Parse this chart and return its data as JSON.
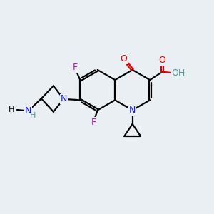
{
  "background_color": "#eaeff3",
  "atom_colors": {
    "C": "#000000",
    "N": "#1a1aff",
    "O": "#dd0000",
    "F": "#cc00cc",
    "H": "#4d9999"
  },
  "figsize": [
    3.0,
    3.0
  ],
  "dpi": 100
}
